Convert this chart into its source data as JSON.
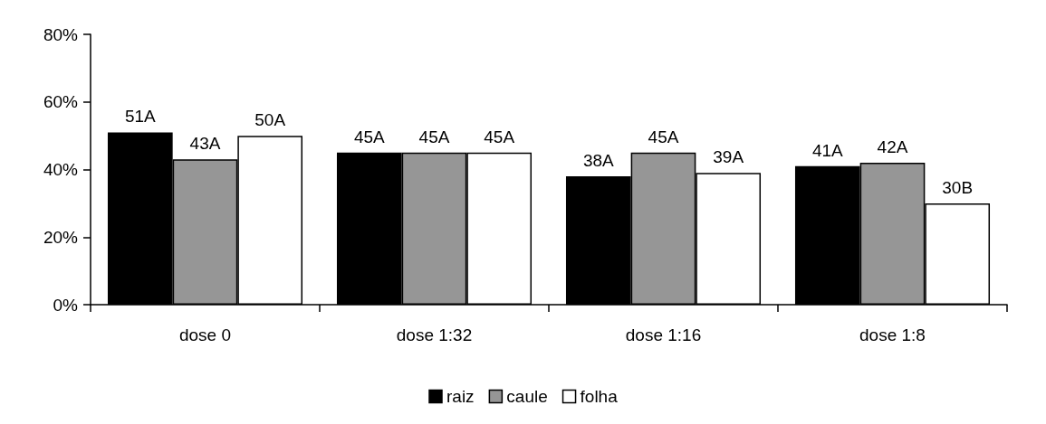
{
  "chart_data": {
    "type": "bar",
    "categories": [
      "dose 0",
      "dose 1:32",
      "dose 1:16",
      "dose 1:8"
    ],
    "series": [
      {
        "name": "raiz",
        "color": "#000000",
        "values": [
          51,
          45,
          38,
          41
        ],
        "value_labels": [
          "51A",
          "45A",
          "38A",
          "41A"
        ]
      },
      {
        "name": "caule",
        "color": "#969696",
        "values": [
          43,
          45,
          45,
          42
        ],
        "value_labels": [
          "43A",
          "45A",
          "45A",
          "42A"
        ]
      },
      {
        "name": "folha",
        "color": "#ffffff",
        "values": [
          50,
          45,
          39,
          30
        ],
        "value_labels": [
          "50A",
          "45A",
          "39A",
          "30B"
        ]
      }
    ],
    "ylim": [
      0,
      80
    ],
    "yticks": [
      {
        "value": 0,
        "label": "0%"
      },
      {
        "value": 20,
        "label": "20%"
      },
      {
        "value": 40,
        "label": "40%"
      },
      {
        "value": 60,
        "label": "60%"
      },
      {
        "value": 80,
        "label": "80%"
      }
    ],
    "grid": false,
    "legend": "bottom"
  }
}
